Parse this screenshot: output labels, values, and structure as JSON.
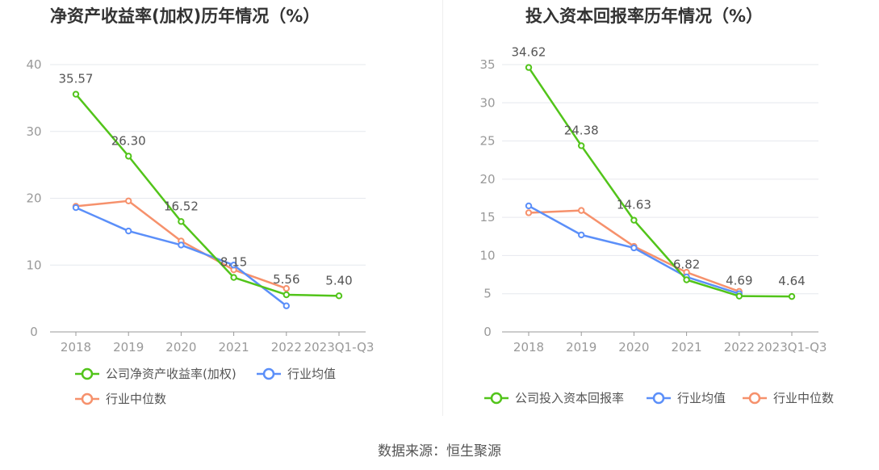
{
  "source": "数据来源：恒生聚源",
  "colors": {
    "company": "#52c41a",
    "avg": "#5b8ff9",
    "median": "#f6916c"
  },
  "chart_data": [
    {
      "type": "line",
      "title": "净资产收益率(加权)历年情况（%）",
      "categories": [
        "2018",
        "2019",
        "2020",
        "2021",
        "2022",
        "2023Q1-Q3"
      ],
      "ylim": [
        0,
        40
      ],
      "yticks": [
        "0",
        "10",
        "20",
        "30",
        "40"
      ],
      "legend": "bottom",
      "series": [
        {
          "name": "公司净资产收益率(加权)",
          "color": "#52c41a",
          "values": [
            35.57,
            26.3,
            16.52,
            8.15,
            5.56,
            5.4
          ],
          "labels": [
            "35.57",
            "26.30",
            "16.52",
            "8.15",
            "5.56",
            "5.40"
          ]
        },
        {
          "name": "行业均值",
          "color": "#5b8ff9",
          "values": [
            18.6,
            15.1,
            13.0,
            10.0,
            3.9,
            null
          ]
        },
        {
          "name": "行业中位数",
          "color": "#f6916c",
          "values": [
            18.8,
            19.6,
            13.6,
            9.3,
            6.5,
            null
          ]
        }
      ]
    },
    {
      "type": "line",
      "title": "投入资本回报率历年情况（%）",
      "categories": [
        "2018",
        "2019",
        "2020",
        "2021",
        "2022",
        "2023Q1-Q3"
      ],
      "ylim": [
        0,
        35
      ],
      "yticks": [
        "0",
        "5",
        "10",
        "15",
        "20",
        "25",
        "30",
        "35"
      ],
      "legend": "bottom",
      "series": [
        {
          "name": "公司投入资本回报率",
          "color": "#52c41a",
          "values": [
            34.62,
            24.38,
            14.63,
            6.82,
            4.69,
            4.64
          ],
          "labels": [
            "34.62",
            "24.38",
            "14.63",
            "6.82",
            "4.69",
            "4.64"
          ]
        },
        {
          "name": "行业均值",
          "color": "#5b8ff9",
          "values": [
            16.5,
            12.7,
            11.0,
            7.2,
            5.0,
            null
          ]
        },
        {
          "name": "行业中位数",
          "color": "#f6916c",
          "values": [
            15.6,
            15.9,
            11.2,
            7.8,
            5.3,
            null
          ]
        }
      ]
    }
  ]
}
